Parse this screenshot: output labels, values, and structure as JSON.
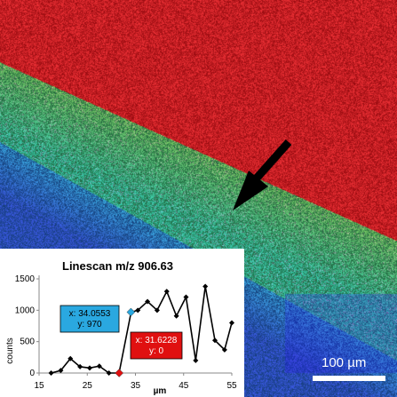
{
  "image": {
    "colors": {
      "red_region": "#b31818",
      "green_region": "#4c8a5c",
      "blue_region": "#1f40a8",
      "arrow": "#000000"
    },
    "icons": [
      "arrow-icon"
    ]
  },
  "scale_bar": {
    "label": "100 µm"
  },
  "chart_data": {
    "type": "line",
    "title": "Linescan m/z 906.63",
    "xlabel": "µm",
    "ylabel": "counts",
    "xlim": [
      15,
      55
    ],
    "ylim": [
      0,
      1500
    ],
    "x_ticks": [
      15,
      25,
      35,
      45,
      55
    ],
    "y_ticks": [
      0,
      500,
      1000,
      1500
    ],
    "grid": false,
    "legend": "none",
    "series": [
      {
        "color": "#000000",
        "points": [
          [
            17.5,
            0
          ],
          [
            19.5,
            40
          ],
          [
            21.5,
            230
          ],
          [
            23.5,
            100
          ],
          [
            25.5,
            80
          ],
          [
            27.5,
            110
          ],
          [
            29.5,
            0
          ],
          [
            31.6,
            0
          ],
          [
            34.1,
            970
          ],
          [
            35.5,
            1000
          ],
          [
            37.5,
            1140
          ],
          [
            39.5,
            1000
          ],
          [
            41.5,
            1300
          ],
          [
            43.5,
            910
          ],
          [
            45.5,
            1210
          ],
          [
            47.5,
            200
          ],
          [
            49.5,
            1380
          ],
          [
            51.5,
            520
          ],
          [
            53.5,
            370
          ],
          [
            55.0,
            800
          ]
        ]
      }
    ],
    "annotations": [
      {
        "x_text": "x: 34.0553",
        "y_text": "y: 970",
        "x": 34.0553,
        "y": 970,
        "color": "#2aa8e0"
      },
      {
        "x_text": "x: 31.6228",
        "y_text": "y: 0",
        "x": 31.6228,
        "y": 0,
        "color": "#e01010"
      }
    ]
  }
}
